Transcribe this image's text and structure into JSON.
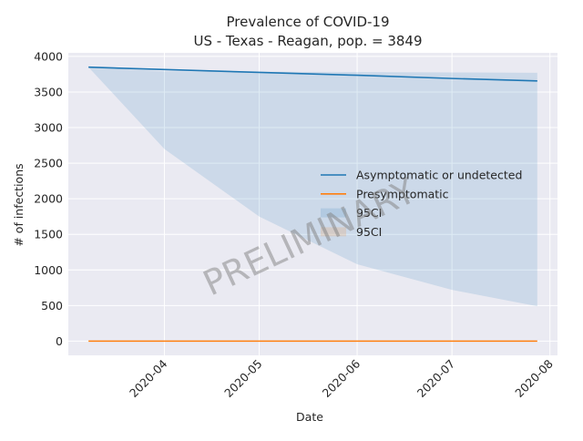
{
  "chart_data": {
    "type": "line",
    "title": "Prevalence of COVID-19",
    "subtitle": "US - Texas - Reagan, pop. = 3849",
    "xlabel": "Date",
    "ylabel": "# of infections",
    "x_range": [
      "2020-03-08",
      "2020-07-28"
    ],
    "ylim": [
      -200,
      4050
    ],
    "x_ticks": [
      "2020-04",
      "2020-05",
      "2020-06",
      "2020-07",
      "2020-08"
    ],
    "x_tick_dates": [
      "2020-04-01",
      "2020-05-01",
      "2020-06-01",
      "2020-07-01",
      "2020-08-01"
    ],
    "y_ticks": [
      0,
      500,
      1000,
      1500,
      2000,
      2500,
      3000,
      3500,
      4000
    ],
    "grid": true,
    "legend_position": "center-right",
    "series": [
      {
        "name": "Asymptomatic or undetected",
        "color": "#1f77b4",
        "x": [
          "2020-03-08",
          "2020-04-01",
          "2020-05-01",
          "2020-06-01",
          "2020-07-01",
          "2020-07-28"
        ],
        "y": [
          3849,
          3815,
          3775,
          3735,
          3690,
          3655
        ]
      },
      {
        "name": "Presymptomatic",
        "color": "#ff7f0e",
        "x": [
          "2020-03-08",
          "2020-07-28"
        ],
        "y": [
          0,
          0
        ]
      }
    ],
    "bands": [
      {
        "name": "95CI",
        "color": "#1f77b4",
        "x": [
          "2020-03-08",
          "2020-04-01",
          "2020-05-01",
          "2020-06-01",
          "2020-07-01",
          "2020-07-28"
        ],
        "lower": [
          3849,
          2700,
          1750,
          1080,
          720,
          490
        ],
        "upper": [
          3849,
          3790,
          3785,
          3780,
          3775,
          3770
        ]
      },
      {
        "name": "95CI",
        "color": "#ff7f0e",
        "x": [
          "2020-03-08",
          "2020-07-28"
        ],
        "lower": [
          0,
          0
        ],
        "upper": [
          0,
          0
        ]
      }
    ],
    "watermark": "PRELIMINARY"
  }
}
